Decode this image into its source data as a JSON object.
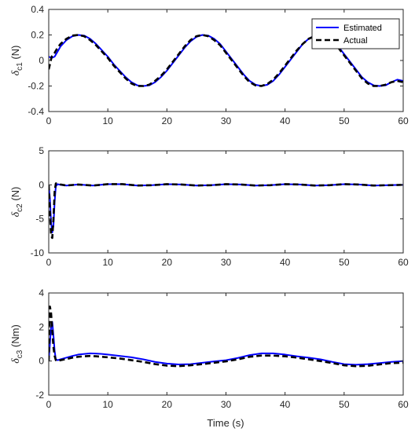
{
  "figure": {
    "xlabel": "Time (s)"
  },
  "legend": {
    "position": "top-right",
    "entries": [
      {
        "name": "Estimated",
        "color": "#0000ff",
        "style": "solid"
      },
      {
        "name": "Actual",
        "color": "#000000",
        "style": "dashed"
      }
    ]
  },
  "chart_data": [
    {
      "type": "line",
      "ylabel_symbol": "δ",
      "ylabel_sub": "c1",
      "ylabel_unit": " (N)",
      "xlim": [
        0,
        60
      ],
      "ylim": [
        -0.4,
        0.4
      ],
      "xticks": [
        0,
        10,
        20,
        30,
        40,
        50,
        60
      ],
      "yticks": [
        -0.4,
        -0.2,
        0,
        0.2,
        0.4
      ],
      "ytick_labels": [
        "-0.4",
        "-0.2",
        "0",
        "0.2",
        "0.4"
      ],
      "grid": false,
      "series": [
        {
          "name": "Estimated",
          "x": [
            0,
            0.5,
            1,
            1.5,
            2,
            3,
            4,
            5,
            6,
            7,
            8,
            9,
            10,
            11,
            12,
            13,
            14,
            15,
            16,
            17,
            18,
            19,
            20,
            21,
            22,
            23,
            24,
            25,
            26,
            27,
            28,
            29,
            30,
            31,
            32,
            33,
            34,
            35,
            36,
            37,
            38,
            39,
            40,
            41,
            42,
            43,
            44,
            45,
            46,
            47,
            48,
            49,
            50,
            51,
            52,
            53,
            54,
            55,
            56,
            57,
            58,
            59,
            60
          ],
          "y": [
            0.03,
            0.02,
            0.03,
            0.07,
            0.11,
            0.16,
            0.19,
            0.2,
            0.195,
            0.17,
            0.13,
            0.08,
            0.03,
            -0.03,
            -0.08,
            -0.13,
            -0.17,
            -0.195,
            -0.2,
            -0.195,
            -0.17,
            -0.13,
            -0.08,
            -0.02,
            0.04,
            0.1,
            0.15,
            0.185,
            0.2,
            0.195,
            0.17,
            0.13,
            0.07,
            0.01,
            -0.05,
            -0.11,
            -0.16,
            -0.19,
            -0.2,
            -0.19,
            -0.16,
            -0.11,
            -0.05,
            0.01,
            0.07,
            0.13,
            0.17,
            0.195,
            0.2,
            0.19,
            0.16,
            0.11,
            0.05,
            -0.01,
            -0.07,
            -0.13,
            -0.17,
            -0.195,
            -0.2,
            -0.195,
            -0.17,
            -0.15,
            -0.16
          ]
        },
        {
          "name": "Actual",
          "x": [
            0,
            0.5,
            1,
            1.5,
            2,
            3,
            4,
            5,
            6,
            7,
            8,
            9,
            10,
            11,
            12,
            13,
            14,
            15,
            16,
            17,
            18,
            19,
            20,
            21,
            22,
            23,
            24,
            25,
            26,
            27,
            28,
            29,
            30,
            31,
            32,
            33,
            34,
            35,
            36,
            37,
            38,
            39,
            40,
            41,
            42,
            43,
            44,
            45,
            46,
            47,
            48,
            49,
            50,
            51,
            52,
            53,
            54,
            55,
            56,
            57,
            58,
            59,
            60
          ],
          "y": [
            -0.07,
            0.03,
            0.06,
            0.1,
            0.13,
            0.17,
            0.195,
            0.2,
            0.19,
            0.16,
            0.12,
            0.07,
            0.02,
            -0.04,
            -0.09,
            -0.14,
            -0.18,
            -0.2,
            -0.2,
            -0.19,
            -0.16,
            -0.12,
            -0.07,
            -0.01,
            0.05,
            0.11,
            0.16,
            0.19,
            0.2,
            0.19,
            0.16,
            0.12,
            0.06,
            0.0,
            -0.06,
            -0.12,
            -0.17,
            -0.195,
            -0.2,
            -0.185,
            -0.15,
            -0.1,
            -0.04,
            0.02,
            0.08,
            0.13,
            0.17,
            0.19,
            0.19,
            0.18,
            0.15,
            0.1,
            0.04,
            -0.02,
            -0.08,
            -0.14,
            -0.18,
            -0.2,
            -0.2,
            -0.19,
            -0.17,
            -0.16,
            -0.17
          ]
        }
      ]
    },
    {
      "type": "line",
      "ylabel_symbol": "δ",
      "ylabel_sub": "c2",
      "ylabel_unit": " (N)",
      "xlim": [
        0,
        60
      ],
      "ylim": [
        -10,
        5
      ],
      "xticks": [
        0,
        10,
        20,
        30,
        40,
        50,
        60
      ],
      "yticks": [
        -10,
        -5,
        0,
        5
      ],
      "ytick_labels": [
        "-10",
        "-5",
        "0",
        "5"
      ],
      "grid": false,
      "series": [
        {
          "name": "Estimated",
          "x": [
            0,
            0.2,
            0.4,
            0.6,
            0.8,
            1,
            1.2,
            1.5,
            2,
            3,
            5,
            7.5,
            10,
            12.5,
            15,
            17.5,
            20,
            22.5,
            25,
            27.5,
            30,
            32.5,
            35,
            37.5,
            40,
            42.5,
            45,
            47.5,
            50,
            52.5,
            55,
            57.5,
            60
          ],
          "y": [
            0,
            -2,
            -5.5,
            -7,
            -6,
            -2.5,
            -0.2,
            0.1,
            0,
            -0.1,
            0.05,
            -0.1,
            0.1,
            0.1,
            -0.1,
            -0.05,
            0.1,
            0.05,
            -0.1,
            -0.05,
            0.1,
            0.05,
            -0.1,
            -0.05,
            0.1,
            0.05,
            -0.1,
            -0.05,
            0.1,
            0.05,
            -0.1,
            -0.05,
            0
          ]
        },
        {
          "name": "Actual",
          "x": [
            0,
            0.2,
            0.4,
            0.6,
            0.8,
            1,
            1.2,
            1.5,
            2,
            3,
            5,
            7.5,
            10,
            12.5,
            15,
            17.5,
            20,
            22.5,
            25,
            27.5,
            30,
            32.5,
            35,
            37.5,
            40,
            42.5,
            45,
            47.5,
            50,
            52.5,
            55,
            57.5,
            60
          ],
          "y": [
            0,
            -4,
            -7.5,
            -7.8,
            -5,
            -1,
            0.2,
            0.2,
            0.05,
            -0.1,
            0.05,
            -0.1,
            0.1,
            0.1,
            -0.1,
            -0.05,
            0.1,
            0.05,
            -0.1,
            -0.05,
            0.1,
            0.05,
            -0.1,
            -0.05,
            0.1,
            0.05,
            -0.1,
            -0.05,
            0.1,
            0.05,
            -0.1,
            -0.05,
            0
          ]
        }
      ]
    },
    {
      "type": "line",
      "ylabel_symbol": "δ",
      "ylabel_sub": "c3",
      "ylabel_unit": " (Nm)",
      "xlim": [
        0,
        60
      ],
      "ylim": [
        -2,
        4
      ],
      "xticks": [
        0,
        10,
        20,
        30,
        40,
        50,
        60
      ],
      "yticks": [
        -2,
        0,
        2,
        4
      ],
      "ytick_labels": [
        "-2",
        "0",
        "2",
        "4"
      ],
      "grid": false,
      "series": [
        {
          "name": "Estimated",
          "x": [
            0,
            0.2,
            0.4,
            0.6,
            0.8,
            1,
            1.2,
            1.5,
            2,
            3,
            4,
            5,
            6,
            7,
            8,
            9,
            10,
            12,
            14,
            16,
            18,
            20,
            22,
            24,
            26,
            28,
            30,
            32,
            34,
            36,
            38,
            40,
            42,
            44,
            46,
            48,
            50,
            52,
            54,
            56,
            58,
            60
          ],
          "y": [
            0,
            1.0,
            2.0,
            2.3,
            1.5,
            0.6,
            0.1,
            0.05,
            0.1,
            0.2,
            0.3,
            0.38,
            0.42,
            0.45,
            0.44,
            0.42,
            0.38,
            0.3,
            0.22,
            0.1,
            -0.05,
            -0.15,
            -0.2,
            -0.18,
            -0.1,
            -0.02,
            0.05,
            0.18,
            0.35,
            0.45,
            0.45,
            0.38,
            0.28,
            0.2,
            0.1,
            -0.05,
            -0.18,
            -0.22,
            -0.18,
            -0.12,
            -0.05,
            0.0
          ]
        },
        {
          "name": "Actual",
          "x": [
            0,
            0.2,
            0.4,
            0.6,
            0.8,
            1,
            1.2,
            1.5,
            2,
            3,
            4,
            5,
            6,
            7,
            8,
            9,
            10,
            12,
            14,
            16,
            18,
            20,
            22,
            24,
            26,
            28,
            30,
            32,
            34,
            36,
            38,
            40,
            42,
            44,
            46,
            48,
            50,
            52,
            54,
            56,
            58,
            60
          ],
          "y": [
            0,
            3.2,
            2.8,
            1.8,
            0.8,
            0.3,
            0.05,
            0.0,
            0.05,
            0.12,
            0.2,
            0.25,
            0.28,
            0.3,
            0.28,
            0.25,
            0.22,
            0.15,
            0.05,
            -0.05,
            -0.18,
            -0.27,
            -0.3,
            -0.25,
            -0.18,
            -0.1,
            -0.02,
            0.1,
            0.25,
            0.32,
            0.32,
            0.28,
            0.2,
            0.1,
            0.0,
            -0.12,
            -0.25,
            -0.3,
            -0.28,
            -0.2,
            -0.12,
            -0.1
          ]
        }
      ]
    }
  ]
}
